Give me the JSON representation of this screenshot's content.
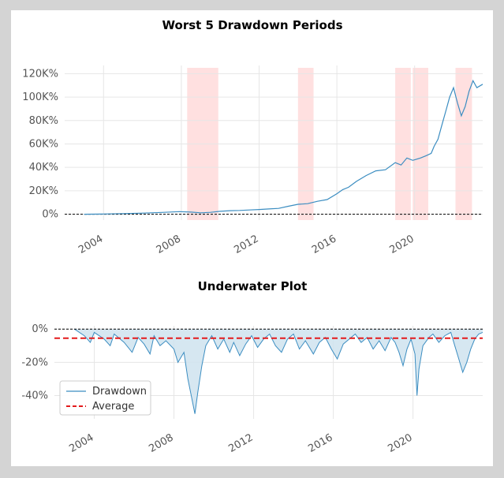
{
  "chart_data": [
    {
      "type": "line",
      "title": "Worst 5 Drawdown Periods",
      "xlabel": "",
      "ylabel": "",
      "x_range": [
        2002.0,
        2023.5
      ],
      "ylim": [
        -5000,
        127000
      ],
      "y_ticks": [
        0,
        20000,
        40000,
        60000,
        80000,
        100000,
        120000
      ],
      "y_tick_labels": [
        "0%",
        "20K%",
        "40K%",
        "60K%",
        "80K%",
        "100K%",
        "120K%"
      ],
      "x_ticks": [
        2004,
        2008,
        2012,
        2016,
        2020
      ],
      "x_tick_labels": [
        "2004",
        "2008",
        "2012",
        "2016",
        "2020"
      ],
      "grid": true,
      "baseline": 0,
      "colors": {
        "line": "#3b8dc1",
        "highlight": "#ffcccc",
        "baseline": "#000000"
      },
      "drawdown_periods": [
        {
          "start": 2008.3,
          "end": 2009.9
        },
        {
          "start": 2014.0,
          "end": 2014.8
        },
        {
          "start": 2019.0,
          "end": 2019.8
        },
        {
          "start": 2019.9,
          "end": 2020.7
        },
        {
          "start": 2022.1,
          "end": 2022.95
        }
      ],
      "series": [
        {
          "x": [
            2003.0,
            2004.0,
            2005.0,
            2006.0,
            2007.0,
            2007.9,
            2008.5,
            2009.0,
            2009.5,
            2010.0,
            2010.5,
            2011.0,
            2011.5,
            2012.0,
            2012.5,
            2013.0,
            2013.5,
            2014.0,
            2014.5,
            2015.0,
            2015.5,
            2016.0,
            2016.3,
            2016.6,
            2017.0,
            2017.5,
            2018.0,
            2018.5,
            2019.0,
            2019.3,
            2019.6,
            2019.9,
            2020.1,
            2020.3,
            2020.6,
            2020.85,
            2021.0,
            2021.2,
            2021.4,
            2021.6,
            2021.8,
            2022.0,
            2022.2,
            2022.4,
            2022.6,
            2022.8,
            2023.0,
            2023.2,
            2023.5
          ],
          "y": [
            0,
            200,
            500,
            900,
            1500,
            2200,
            1800,
            1200,
            1600,
            2500,
            3000,
            3200,
            3600,
            4000,
            4500,
            5000,
            6800,
            8500,
            9000,
            11000,
            12500,
            17500,
            21000,
            23000,
            28000,
            33000,
            37000,
            38000,
            44000,
            42000,
            48000,
            46000,
            47000,
            48000,
            50000,
            52000,
            58000,
            64000,
            76000,
            88000,
            100000,
            108000,
            95000,
            84000,
            92000,
            105000,
            114000,
            108000,
            111000
          ]
        }
      ]
    },
    {
      "type": "area",
      "title": "Underwater Plot",
      "xlabel": "",
      "ylabel": "",
      "x_range": [
        2002.0,
        2023.5
      ],
      "ylim": [
        -54,
        2
      ],
      "y_ticks": [
        0,
        -20,
        -40
      ],
      "y_tick_labels": [
        "0%",
        "-20%",
        "-40%"
      ],
      "x_ticks": [
        2004,
        2008,
        2012,
        2016,
        2020
      ],
      "x_tick_labels": [
        "2004",
        "2008",
        "2012",
        "2016",
        "2020"
      ],
      "grid": true,
      "legend_position": "lower-left",
      "average": -5.5,
      "colors": {
        "line": "#3b8dc1",
        "fill": "#cfe3ef",
        "average": "#e31a1c",
        "zero": "#000000"
      },
      "series": [
        {
          "name": "Drawdown",
          "x": [
            2003.0,
            2003.5,
            2003.8,
            2004.0,
            2004.5,
            2004.8,
            2005.0,
            2005.5,
            2005.9,
            2006.2,
            2006.5,
            2006.8,
            2007.0,
            2007.3,
            2007.6,
            2008.0,
            2008.2,
            2008.5,
            2008.7,
            2008.9,
            2009.05,
            2009.2,
            2009.4,
            2009.6,
            2009.9,
            2010.2,
            2010.5,
            2010.8,
            2011.0,
            2011.3,
            2011.6,
            2011.9,
            2012.2,
            2012.5,
            2012.8,
            2013.1,
            2013.4,
            2013.7,
            2014.0,
            2014.3,
            2014.6,
            2015.0,
            2015.3,
            2015.6,
            2015.9,
            2016.2,
            2016.5,
            2016.8,
            2017.1,
            2017.4,
            2017.7,
            2018.0,
            2018.3,
            2018.6,
            2018.9,
            2019.1,
            2019.3,
            2019.5,
            2019.7,
            2019.9,
            2020.1,
            2020.2,
            2020.3,
            2020.5,
            2020.8,
            2021.0,
            2021.3,
            2021.6,
            2021.9,
            2022.1,
            2022.3,
            2022.5,
            2022.7,
            2022.9,
            2023.1,
            2023.3,
            2023.5
          ],
          "values": [
            0,
            -4,
            -8,
            -2,
            -6,
            -10,
            -3,
            -8,
            -14,
            -5,
            -9,
            -15,
            -4,
            -10,
            -7,
            -12,
            -20,
            -14,
            -30,
            -42,
            -51,
            -38,
            -22,
            -10,
            -4,
            -12,
            -6,
            -14,
            -8,
            -16,
            -9,
            -4,
            -11,
            -6,
            -3,
            -10,
            -14,
            -6,
            -3,
            -12,
            -7,
            -15,
            -8,
            -5,
            -12,
            -18,
            -9,
            -6,
            -3,
            -8,
            -5,
            -12,
            -7,
            -13,
            -5,
            -8,
            -14,
            -22,
            -12,
            -6,
            -15,
            -40,
            -24,
            -10,
            -5,
            -3,
            -8,
            -4,
            -2,
            -10,
            -18,
            -26,
            -20,
            -12,
            -6,
            -3,
            -2
          ]
        }
      ],
      "legend": [
        {
          "label": "Drawdown",
          "style": "line"
        },
        {
          "label": "Average",
          "style": "dashed"
        }
      ]
    }
  ]
}
